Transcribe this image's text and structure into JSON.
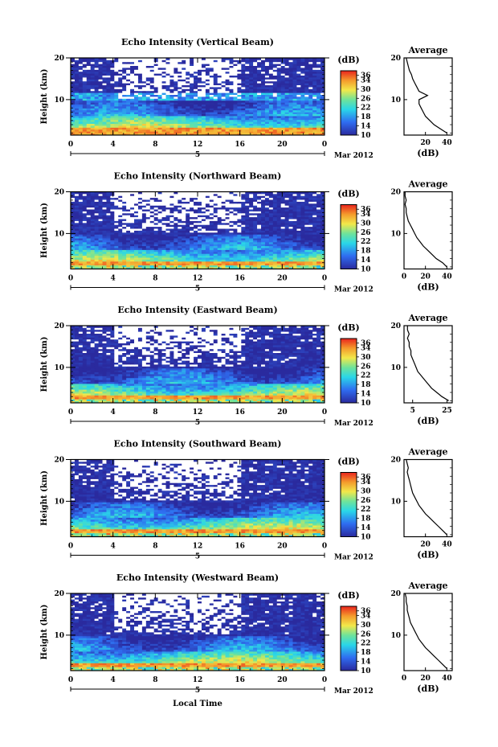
{
  "figure": {
    "xlabel_bottom": "Local Time",
    "date_label": "Mar 2012",
    "day_label": "5",
    "colorbar_unit": "(dB)",
    "colorbar_ticks": [
      "36",
      "34",
      "30",
      "26",
      "22",
      "18",
      "14",
      "10"
    ],
    "profile_title": "Average",
    "profile_xunit": "(dB)"
  },
  "chart_data": [
    {
      "type": "heatmap",
      "title": "Echo Intensity (Vertical Beam)",
      "ylabel": "Height (km)",
      "x_ticks": [
        "0",
        "4",
        "8",
        "12",
        "16",
        "20",
        "0"
      ],
      "y_ticks": [
        "20",
        "10"
      ],
      "xlim": [
        0,
        24
      ],
      "ylim": [
        1.5,
        20
      ],
      "clim": [
        10,
        38
      ],
      "profile": {
        "x_ticks": [
          "20",
          "40"
        ],
        "x_tick_values": [
          20,
          40
        ],
        "xlim": [
          0,
          45
        ],
        "heights": [
          2,
          3,
          4,
          5,
          6,
          7,
          8,
          9,
          10,
          11,
          12,
          13,
          14,
          15,
          16,
          17,
          18,
          19,
          20
        ],
        "values": [
          40,
          34,
          28,
          24,
          20,
          18,
          16,
          14,
          14,
          22,
          14,
          12,
          10,
          8,
          7,
          5,
          4,
          3,
          2
        ]
      }
    },
    {
      "type": "heatmap",
      "title": "Echo Intensity (Northward Beam)",
      "ylabel": "Height (km)",
      "x_ticks": [
        "0",
        "4",
        "8",
        "12",
        "16",
        "20",
        "0"
      ],
      "y_ticks": [
        "20",
        "10"
      ],
      "xlim": [
        0,
        24
      ],
      "ylim": [
        1.5,
        20
      ],
      "clim": [
        10,
        38
      ],
      "profile": {
        "x_ticks": [
          "0",
          "20",
          "40"
        ],
        "x_tick_values": [
          0,
          20,
          40
        ],
        "xlim": [
          0,
          45
        ],
        "heights": [
          2,
          3,
          4,
          5,
          6,
          7,
          8,
          9,
          10,
          11,
          12,
          13,
          14,
          15,
          16,
          17,
          18,
          19,
          20
        ],
        "values": [
          40,
          36,
          30,
          26,
          22,
          18,
          15,
          12,
          10,
          8,
          6,
          4,
          3,
          2,
          2,
          1,
          2,
          1,
          1
        ]
      }
    },
    {
      "type": "heatmap",
      "title": "Echo Intensity (Eastward Beam)",
      "ylabel": "Height (km)",
      "x_ticks": [
        "0",
        "4",
        "8",
        "12",
        "16",
        "20",
        "0"
      ],
      "y_ticks": [
        "20",
        "10"
      ],
      "xlim": [
        0,
        24
      ],
      "ylim": [
        1.5,
        20
      ],
      "clim": [
        10,
        38
      ],
      "profile": {
        "x_ticks": [
          "5",
          "25"
        ],
        "x_tick_values": [
          5,
          25
        ],
        "xlim": [
          0,
          28
        ],
        "heights": [
          2,
          3,
          4,
          5,
          6,
          7,
          8,
          9,
          10,
          11,
          12,
          13,
          14,
          15,
          16,
          17,
          18,
          19,
          20
        ],
        "values": [
          26,
          22,
          19,
          16,
          14,
          12,
          10,
          8,
          7,
          6,
          5,
          4,
          4,
          3,
          3,
          2,
          3,
          2,
          2
        ]
      }
    },
    {
      "type": "heatmap",
      "title": "Echo Intensity (Southward Beam)",
      "ylabel": "Height (km)",
      "x_ticks": [
        "0",
        "4",
        "8",
        "12",
        "16",
        "20",
        "0"
      ],
      "y_ticks": [
        "20",
        "10"
      ],
      "xlim": [
        0,
        24
      ],
      "ylim": [
        1.5,
        20
      ],
      "clim": [
        10,
        38
      ],
      "profile": {
        "x_ticks": [
          "20",
          "40"
        ],
        "x_tick_values": [
          20,
          40
        ],
        "xlim": [
          0,
          45
        ],
        "heights": [
          2,
          3,
          4,
          5,
          6,
          7,
          8,
          9,
          10,
          11,
          12,
          13,
          14,
          15,
          16,
          17,
          18,
          19,
          20
        ],
        "values": [
          40,
          36,
          32,
          28,
          24,
          20,
          17,
          14,
          12,
          10,
          8,
          7,
          6,
          5,
          4,
          3,
          4,
          3,
          2
        ]
      }
    },
    {
      "type": "heatmap",
      "title": "Echo Intensity (Westward Beam)",
      "ylabel": "Height (km)",
      "x_ticks": [
        "0",
        "4",
        "8",
        "12",
        "16",
        "20",
        "0"
      ],
      "y_ticks": [
        "20",
        "10"
      ],
      "xlim": [
        0,
        24
      ],
      "ylim": [
        1.5,
        20
      ],
      "clim": [
        10,
        38
      ],
      "profile": {
        "x_ticks": [
          "0",
          "20",
          "40"
        ],
        "x_tick_values": [
          0,
          20,
          40
        ],
        "xlim": [
          0,
          45
        ],
        "heights": [
          2,
          3,
          4,
          5,
          6,
          7,
          8,
          9,
          10,
          11,
          12,
          13,
          14,
          15,
          16,
          17,
          18,
          19,
          20
        ],
        "values": [
          40,
          36,
          32,
          28,
          24,
          20,
          17,
          14,
          12,
          10,
          8,
          6,
          5,
          4,
          3,
          3,
          2,
          2,
          1
        ]
      }
    }
  ]
}
